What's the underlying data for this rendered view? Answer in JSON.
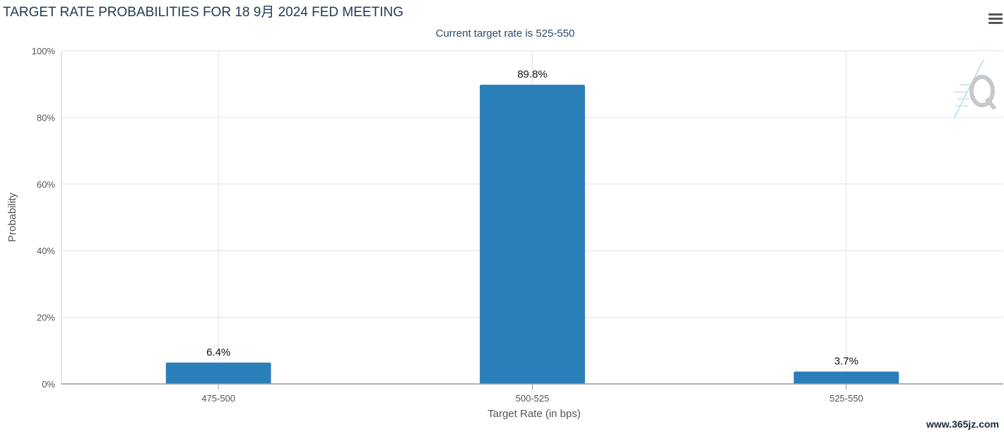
{
  "chart_data": {
    "type": "bar",
    "title": "TARGET RATE PROBABILITIES FOR 18 9月 2024 FED MEETING",
    "subtitle": "Current target rate is 525-550",
    "xlabel": "Target Rate (in bps)",
    "ylabel": "Probability",
    "categories": [
      "475-500",
      "500-525",
      "525-550"
    ],
    "values": [
      6.4,
      89.8,
      3.7
    ],
    "data_labels": [
      "6.4%",
      "89.8%",
      "3.7%"
    ],
    "ylim": [
      0,
      100
    ],
    "yticks": [
      "0%",
      "20%",
      "40%",
      "60%",
      "80%",
      "100%"
    ],
    "grid": true,
    "bar_color": "#2b7fb8"
  },
  "watermark": "www.365jz.com",
  "menu_icon": "hamburger-menu-icon",
  "logo_icon": "quikstrike-q-logo-icon"
}
